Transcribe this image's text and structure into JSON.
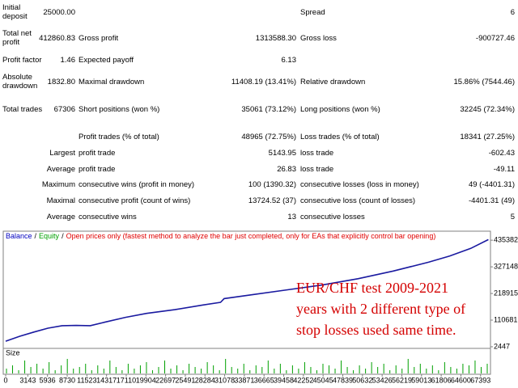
{
  "report": {
    "rows": [
      {
        "label": "Initial deposit",
        "value": "25000.00",
        "label3": "Spread",
        "value3": "6"
      },
      {
        "label": "Total net profit",
        "value": "412860.83",
        "label2": "Gross profit",
        "value2": "1313588.30",
        "label3": "Gross loss",
        "value3": "-900727.46"
      },
      {
        "label": "Profit factor",
        "value": "1.46",
        "label2": "Expected payoff",
        "value2": "6.13"
      },
      {
        "label": "Absolute drawdown",
        "value": "1832.80",
        "label2": "Maximal drawdown",
        "value2": "11408.19 (13.41%)",
        "label3": "Relative drawdown",
        "value3": "15.86% (7544.46)"
      },
      {
        "label": "Total trades",
        "value": "67306",
        "label2": "Short positions (won %)",
        "value2": "35061 (73.12%)",
        "label3": "Long positions (won %)",
        "value3": "32245 (72.34%)"
      },
      {
        "label2": "Profit trades (% of total)",
        "value2": "48965 (72.75%)",
        "label3": "Loss trades (% of total)",
        "value3": "18341 (27.25%)"
      },
      {
        "prefix": "Largest",
        "label2": "profit trade",
        "value2": "5143.95",
        "label3": "loss trade",
        "value3": "-602.43"
      },
      {
        "prefix": "Average",
        "label2": "profit trade",
        "value2": "26.83",
        "label3": "loss trade",
        "value3": "-49.11"
      },
      {
        "prefix": "Maximum",
        "label2": "consecutive wins (profit in money)",
        "value2": "100 (1390.32)",
        "label3": "consecutive losses (loss in money)",
        "value3": "49 (-4401.31)"
      },
      {
        "prefix": "Maximal",
        "label2": "consecutive profit (count of wins)",
        "value2": "13724.52 (37)",
        "label3": "consecutive loss (count of losses)",
        "value3": "-4401.31 (49)"
      },
      {
        "prefix": "Average",
        "label2": "consecutive wins",
        "value2": "13",
        "label3": "consecutive losses",
        "value3": "5"
      }
    ]
  },
  "chart_data": {
    "type": "line",
    "legend": [
      "Balance",
      "Equity",
      "Open prices only (fastest method to analyze the bar just completed, only for EAs that explicitly control bar opening)"
    ],
    "legend_separator": "/",
    "legend_colors": [
      "#0000c0",
      "#00a000",
      "#e00000"
    ],
    "x": [
      0,
      2000,
      4000,
      6000,
      8000,
      10000,
      12000,
      14000,
      17000,
      20000,
      24000,
      28000,
      30500,
      31000,
      35000,
      40000,
      45000,
      50000,
      55000,
      60000,
      63000,
      66000,
      68500
    ],
    "series": [
      {
        "name": "Balance",
        "color": "#1a1aa0",
        "values": [
          25000,
          45000,
          62000,
          78000,
          88000,
          89000,
          88000,
          102000,
          122000,
          138000,
          153000,
          172000,
          183000,
          198000,
          214000,
          234000,
          254000,
          279000,
          310000,
          346000,
          371000,
          402000,
          437860.83
        ]
      }
    ],
    "xlim": [
      0,
      68800
    ],
    "ylim": [
      -4200,
      472000
    ],
    "xticks": [
      0,
      3143,
      5936,
      8730,
      11523,
      14317,
      17110,
      19904,
      22697,
      25491,
      28284,
      31078,
      33871,
      36665,
      39458,
      42252,
      45045,
      47839,
      50632,
      53426,
      56219,
      59013,
      61806,
      64600,
      67393
    ],
    "yticks": [
      435382,
      327148,
      218915,
      110681,
      2447
    ],
    "annotation": [
      "EUR/CHF test 2009-2021",
      "years with 2 different type of",
      "stop losses used same time."
    ],
    "volume": {
      "name": "Size",
      "color": "#00a000",
      "ylim": [
        0,
        10
      ],
      "values": [
        3,
        5,
        2,
        8,
        4,
        6,
        3,
        7,
        2,
        5,
        9,
        3,
        4,
        6,
        2,
        5,
        3,
        8,
        4,
        2,
        6,
        3,
        5,
        7,
        2,
        4,
        8,
        3,
        5,
        2,
        6,
        4,
        3,
        7,
        5,
        2,
        9,
        4,
        3,
        6,
        2,
        5,
        4,
        8,
        3,
        6,
        2,
        5,
        3,
        7,
        4,
        2,
        6,
        5,
        3,
        8,
        4,
        2,
        5,
        3,
        7,
        4,
        6,
        2,
        5,
        3,
        9,
        4,
        6,
        3,
        5,
        2,
        7,
        4,
        3,
        6,
        5,
        8,
        4,
        6
      ]
    }
  }
}
